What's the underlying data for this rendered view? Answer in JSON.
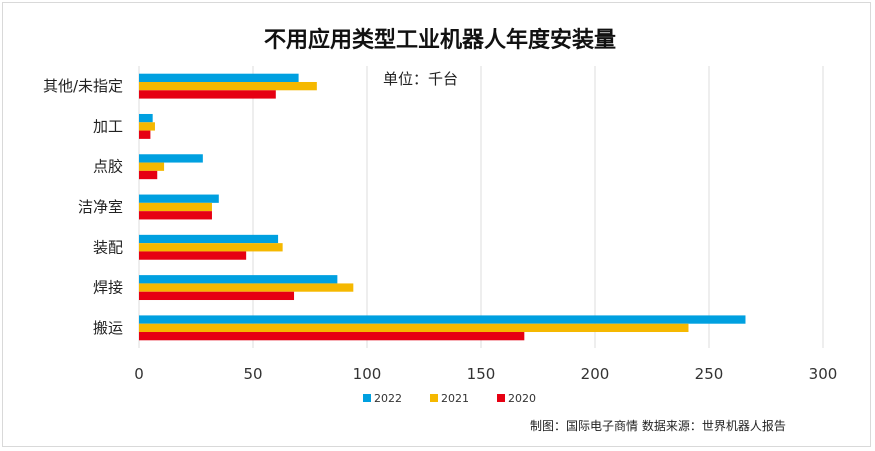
{
  "chart_data": {
    "type": "bar",
    "orientation": "horizontal",
    "title": "不用应用类型工业机器人年度安装量",
    "unit_label": "单位：千台",
    "categories": [
      "其他/未指定",
      "加工",
      "点胶",
      "洁净室",
      "装配",
      "焊接",
      "搬运"
    ],
    "series": [
      {
        "name": "2022",
        "color": "#00a0e0",
        "values": [
          70,
          6,
          28,
          35,
          61,
          87,
          266
        ]
      },
      {
        "name": "2021",
        "color": "#f5b800",
        "values": [
          78,
          7,
          11,
          32,
          63,
          94,
          241
        ]
      },
      {
        "name": "2020",
        "color": "#e60012",
        "values": [
          60,
          5,
          8,
          32,
          47,
          68,
          169
        ]
      }
    ],
    "xlim": [
      0,
      300
    ],
    "xticks": [
      "0",
      "50",
      "100",
      "150",
      "200",
      "250",
      "300"
    ],
    "grid": true,
    "legend_position": "bottom"
  },
  "footer": {
    "source": "制图：国际电子商情 数据来源：世界机器人报告"
  }
}
